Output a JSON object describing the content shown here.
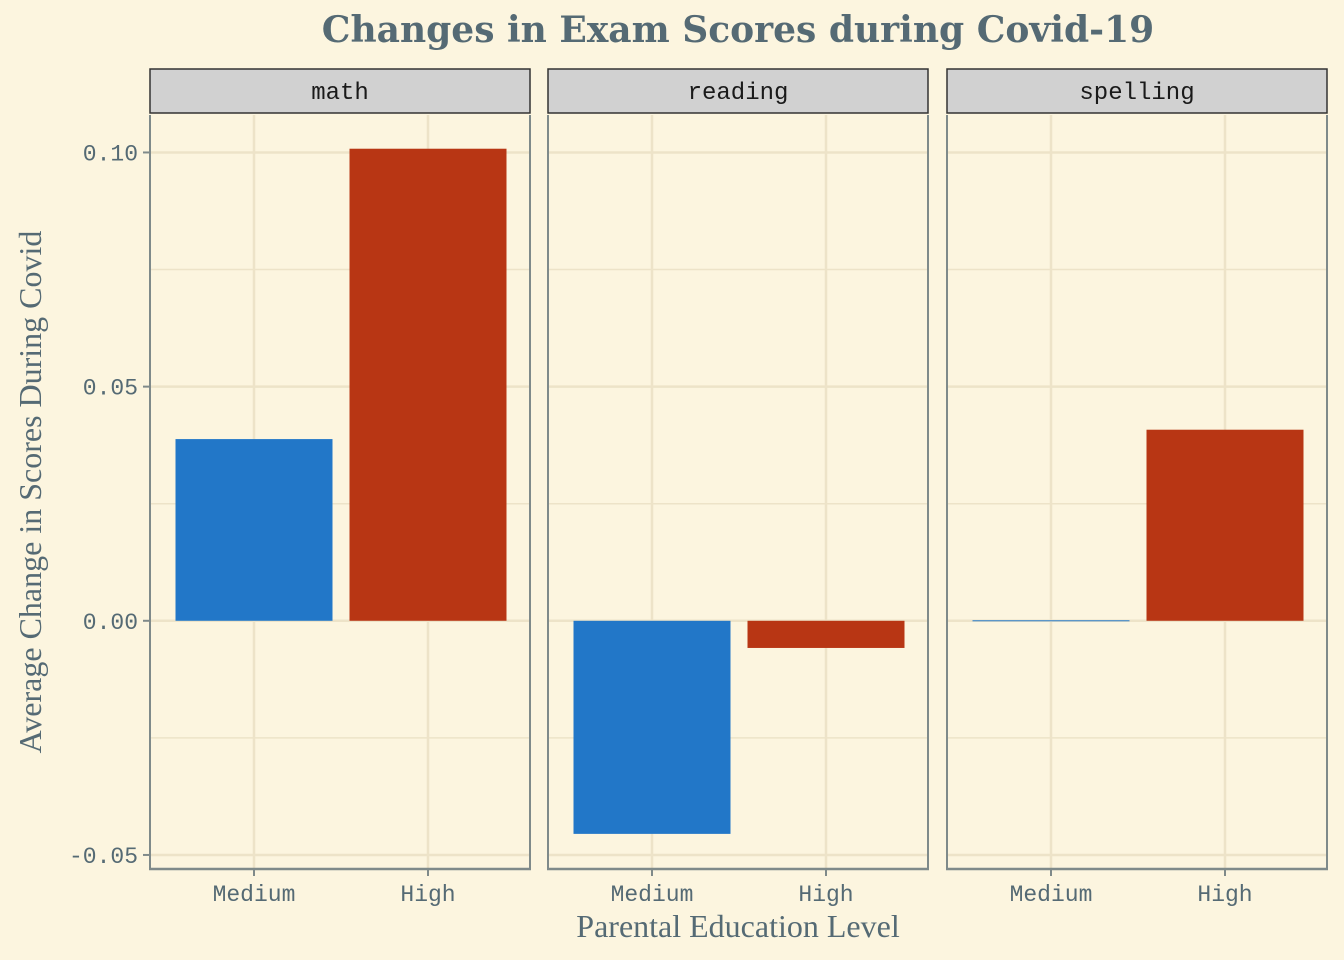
{
  "chart_data": {
    "type": "bar",
    "title": "Changes in Exam Scores during Covid-19",
    "xlabel": "Parental Education Level",
    "ylabel": "Average Change in Scores During Covid",
    "categories": [
      "Medium",
      "High"
    ],
    "panels": [
      {
        "label": "math",
        "values": [
          0.0388,
          0.1008
        ]
      },
      {
        "label": "reading",
        "values": [
          -0.0455,
          -0.0058
        ]
      },
      {
        "label": "spelling",
        "values": [
          0.0,
          0.0408
        ]
      }
    ],
    "category_colors": [
      "#2277c8",
      "#b83614"
    ],
    "ylim": [
      -0.053,
      0.108
    ],
    "yticks": [
      -0.05,
      0.0,
      0.05,
      0.1
    ],
    "ytick_labels": [
      "-0.05",
      "0.00",
      "0.05",
      "0.10"
    ],
    "grid": true,
    "legend": "none"
  },
  "style": {
    "background": "#fcf5df",
    "panel_background": "#fcf5df",
    "grid_color": "#ede3c8",
    "axis_color": "#7f8a8a",
    "strip_fill": "#d1d1d1",
    "strip_border": "#333333"
  }
}
